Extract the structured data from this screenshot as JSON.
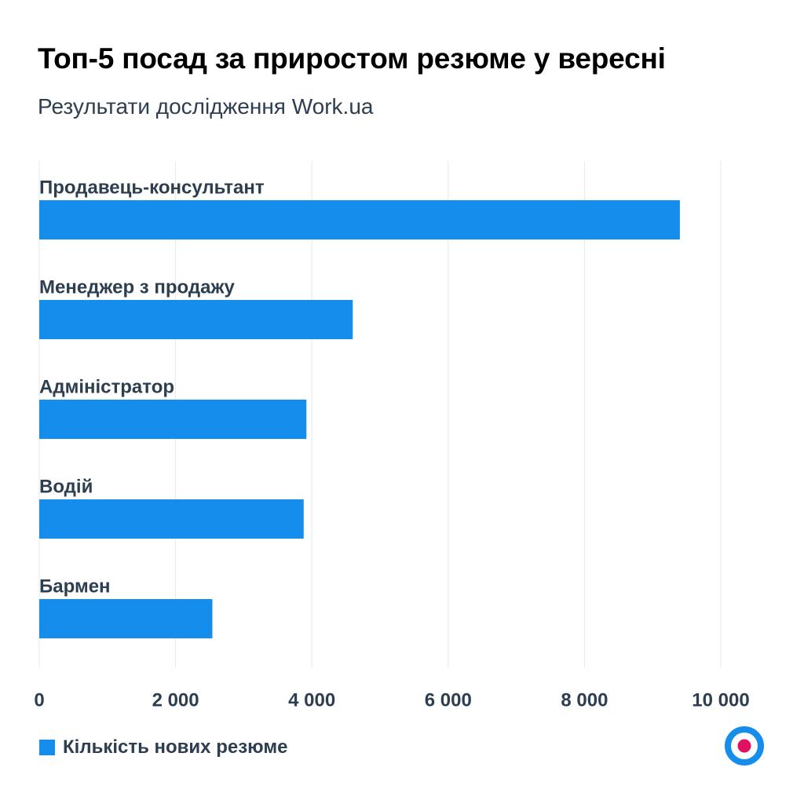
{
  "title": "Топ-5 посад за приростом резюме у вересні",
  "subtitle": "Результати дослідження Work.ua",
  "colors": {
    "bar": "#148ded",
    "grid": "#e9ecef",
    "label": "#2c3e50",
    "logo_ring": "#148ded",
    "logo_dot": "#e0115f"
  },
  "logo_icon": "target-icon",
  "chart_data": {
    "type": "bar",
    "orientation": "horizontal",
    "categories": [
      "Продавець-консультант",
      "Менеджер з продажу",
      "Адміністратор",
      "Водій",
      "Бармен"
    ],
    "series": [
      {
        "name": "Кількість нових резюме",
        "values": [
          9400,
          4600,
          3920,
          3880,
          2540
        ]
      }
    ],
    "xlim": [
      0,
      10000
    ],
    "xticks": [
      0,
      2000,
      4000,
      6000,
      8000,
      10000
    ],
    "xtick_labels": [
      "0",
      "2 000",
      "4 000",
      "6 000",
      "8 000",
      "10 000"
    ],
    "grid": true,
    "legend_position": "bottom-left"
  }
}
